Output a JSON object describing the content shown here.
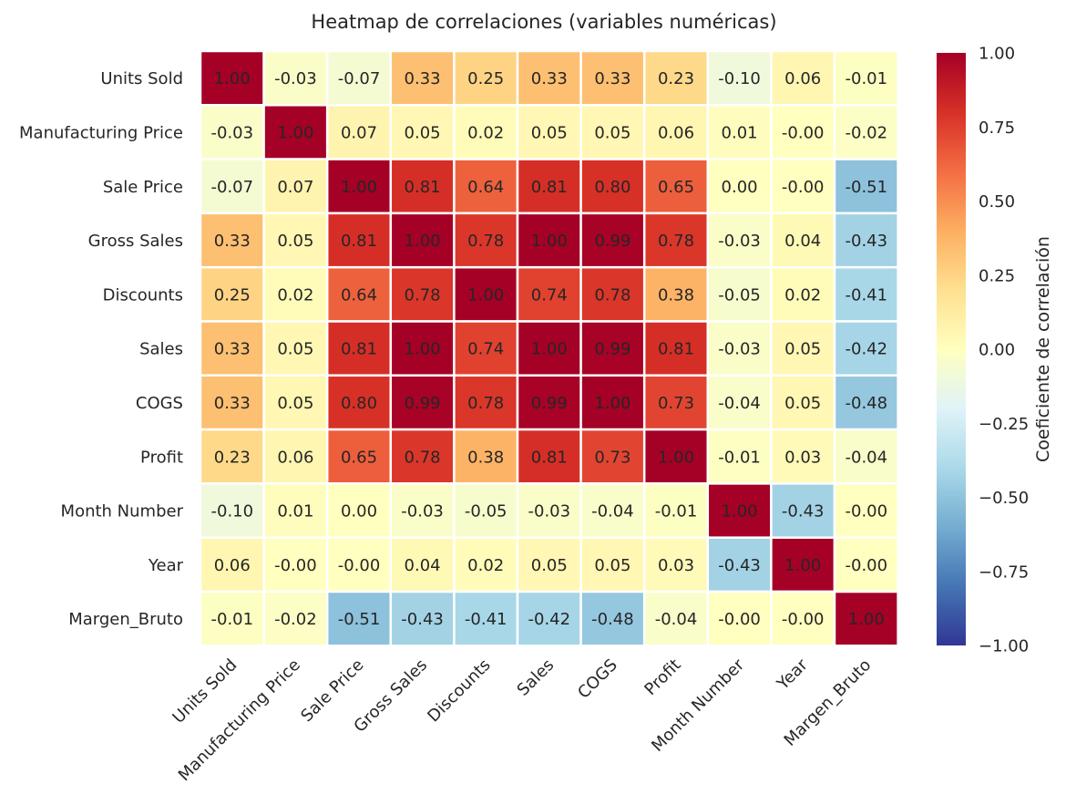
{
  "chart_data": {
    "type": "heatmap",
    "title": "Heatmap de correlaciones (variables numéricas)",
    "labels": [
      "Units Sold",
      "Manufacturing Price",
      "Sale Price",
      "Gross Sales",
      "Discounts",
      "Sales",
      "COGS",
      "Profit",
      "Month Number",
      "Year",
      "Margen_Bruto"
    ],
    "matrix": [
      [
        1.0,
        -0.03,
        -0.07,
        0.33,
        0.25,
        0.33,
        0.33,
        0.23,
        -0.1,
        0.06,
        -0.01
      ],
      [
        -0.03,
        1.0,
        0.07,
        0.05,
        0.02,
        0.05,
        0.05,
        0.06,
        0.01,
        -0.0,
        -0.02
      ],
      [
        -0.07,
        0.07,
        1.0,
        0.81,
        0.64,
        0.81,
        0.8,
        0.65,
        0.0,
        -0.0,
        -0.51
      ],
      [
        0.33,
        0.05,
        0.81,
        1.0,
        0.78,
        1.0,
        0.99,
        0.78,
        -0.03,
        0.04,
        -0.43
      ],
      [
        0.25,
        0.02,
        0.64,
        0.78,
        1.0,
        0.74,
        0.78,
        0.38,
        -0.05,
        0.02,
        -0.41
      ],
      [
        0.33,
        0.05,
        0.81,
        1.0,
        0.74,
        1.0,
        0.99,
        0.81,
        -0.03,
        0.05,
        -0.42
      ],
      [
        0.33,
        0.05,
        0.8,
        0.99,
        0.78,
        0.99,
        1.0,
        0.73,
        -0.04,
        0.05,
        -0.48
      ],
      [
        0.23,
        0.06,
        0.65,
        0.78,
        0.38,
        0.81,
        0.73,
        1.0,
        -0.01,
        0.03,
        -0.04
      ],
      [
        -0.1,
        0.01,
        0.0,
        -0.03,
        -0.05,
        -0.03,
        -0.04,
        -0.01,
        1.0,
        -0.43,
        -0.0
      ],
      [
        0.06,
        -0.0,
        -0.0,
        0.04,
        0.02,
        0.05,
        0.05,
        0.03,
        -0.43,
        1.0,
        -0.0
      ],
      [
        -0.01,
        -0.02,
        -0.51,
        -0.43,
        -0.41,
        -0.42,
        -0.48,
        -0.04,
        -0.0,
        -0.0,
        1.0
      ]
    ],
    "value_format": "0.00",
    "colormap": "RdYlBu_r",
    "vmin": -1.0,
    "vmax": 1.0,
    "colorbar": {
      "label": "Coeficiente de correlación",
      "ticks": [
        "1.00",
        "0.75",
        "0.50",
        "0.25",
        "0.00",
        "−0.25",
        "−0.50",
        "−0.75",
        "−1.00"
      ],
      "tick_values": [
        1.0,
        0.75,
        0.5,
        0.25,
        0.0,
        -0.25,
        -0.5,
        -0.75,
        -1.0
      ]
    },
    "cell_border_color": "#ffffff",
    "text_color": "#262626"
  }
}
